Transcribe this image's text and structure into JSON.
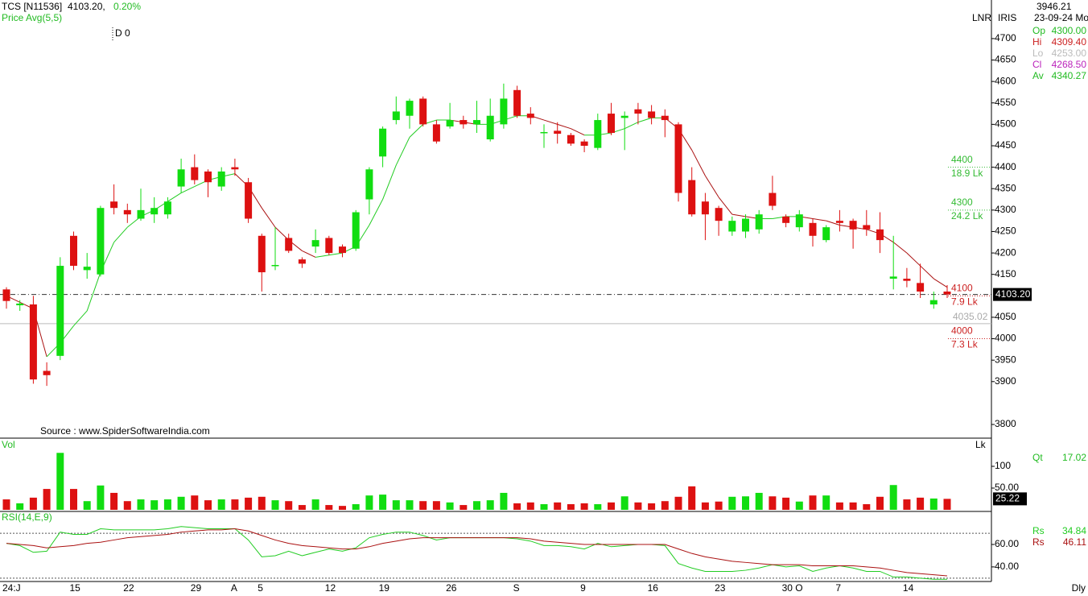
{
  "chart_data": [
    {
      "type": "candlestick",
      "title": "TCS [N11536]",
      "last_text": "4103.20,",
      "change": "0.20%",
      "indicator": "Price Avg(5,5)",
      "note": "D 0",
      "source": "Source : www.SpiderSoftwareIndia.com",
      "axis_names": [
        "LNR",
        "IRIS"
      ],
      "period": "Dly",
      "up_color": "#11dd11",
      "down_color": "#dd1111",
      "categories": [
        "24:J",
        null,
        null,
        null,
        null,
        "15",
        null,
        null,
        null,
        "22",
        null,
        null,
        null,
        null,
        "29",
        null,
        null,
        "A",
        null,
        "5",
        null,
        null,
        null,
        null,
        "12",
        null,
        null,
        null,
        "19",
        null,
        null,
        null,
        null,
        "26",
        null,
        null,
        null,
        null,
        "S",
        null,
        null,
        null,
        null,
        "9",
        null,
        null,
        null,
        null,
        "16",
        null,
        null,
        null,
        null,
        "23",
        null,
        null,
        null,
        null,
        "30 O",
        null,
        null,
        null,
        "7",
        null,
        null,
        null,
        null,
        "14",
        null,
        null,
        null
      ],
      "open": [
        4115,
        4078,
        4080,
        3925,
        3960,
        4240,
        4160,
        4150,
        4320,
        4300,
        4280,
        4290,
        4290,
        4355,
        4400,
        4390,
        4355,
        4400,
        4365,
        4240,
        4170,
        4235,
        4185,
        4215,
        4235,
        4215,
        4210,
        4325,
        4425,
        4510,
        4520,
        4560,
        4500,
        4495,
        4510,
        4500,
        4465,
        4500,
        4580,
        4525,
        4480,
        4485,
        4475,
        4460,
        4445,
        4525,
        4515,
        4535,
        4530,
        4520,
        4500,
        4370,
        4320,
        4305,
        4250,
        4250,
        4255,
        4340,
        4285,
        4260,
        4270,
        4230,
        4275,
        4275,
        4265,
        4255,
        4140,
        4140,
        4130,
        4080,
        4110
      ],
      "high": [
        4120,
        4090,
        4100,
        3945,
        4190,
        4250,
        4200,
        4310,
        4360,
        4315,
        4350,
        4330,
        4330,
        4420,
        4430,
        4395,
        4400,
        4420,
        4375,
        4245,
        4260,
        4245,
        4190,
        4255,
        4240,
        4220,
        4300,
        4400,
        4495,
        4565,
        4560,
        4565,
        4510,
        4550,
        4520,
        4555,
        4560,
        4595,
        4590,
        4540,
        4500,
        4505,
        4480,
        4465,
        4525,
        4550,
        4530,
        4550,
        4545,
        4535,
        4505,
        4400,
        4340,
        4310,
        4285,
        4290,
        4300,
        4380,
        4290,
        4300,
        4280,
        4265,
        4300,
        4280,
        4300,
        4295,
        4240,
        4165,
        4175,
        4110,
        4125
      ],
      "low": [
        4070,
        4065,
        3895,
        3890,
        3950,
        4160,
        4140,
        4145,
        4290,
        4270,
        4275,
        4270,
        4280,
        4340,
        4360,
        4330,
        4345,
        4380,
        4270,
        4110,
        4160,
        4200,
        4165,
        4200,
        4195,
        4190,
        4205,
        4290,
        4400,
        4500,
        4490,
        4495,
        4455,
        4490,
        4490,
        4480,
        4460,
        4490,
        4515,
        4500,
        4445,
        4455,
        4450,
        4435,
        4440,
        4475,
        4440,
        4500,
        4500,
        4470,
        4320,
        4285,
        4230,
        4240,
        4240,
        4235,
        4245,
        4300,
        4260,
        4250,
        4215,
        4225,
        4250,
        4210,
        4240,
        4200,
        4115,
        4120,
        4095,
        4070,
        4095
      ],
      "close": [
        4088,
        4082,
        3905,
        3915,
        4170,
        4170,
        4168,
        4305,
        4305,
        4290,
        4300,
        4305,
        4320,
        4395,
        4370,
        4365,
        4390,
        4395,
        4280,
        4155,
        4172,
        4205,
        4175,
        4230,
        4200,
        4200,
        4295,
        4395,
        4490,
        4530,
        4555,
        4500,
        4460,
        4510,
        4500,
        4510,
        4520,
        4560,
        4520,
        4515,
        4482,
        4478,
        4455,
        4450,
        4510,
        4480,
        4520,
        4525,
        4515,
        4510,
        4340,
        4290,
        4290,
        4275,
        4275,
        4280,
        4290,
        4310,
        4270,
        4290,
        4240,
        4260,
        4270,
        4255,
        4255,
        4230,
        4145,
        4135,
        4110,
        4090,
        4103.2
      ],
      "ma": [
        4100,
        4085,
        4070,
        3958,
        3990,
        4030,
        4065,
        4155,
        4225,
        4260,
        4285,
        4300,
        4320,
        4340,
        4355,
        4370,
        4378,
        4385,
        4355,
        4305,
        4260,
        4230,
        4205,
        4190,
        4195,
        4200,
        4215,
        4265,
        4325,
        4405,
        4470,
        4500,
        4510,
        4510,
        4505,
        4500,
        4500,
        4510,
        4520,
        4520,
        4510,
        4500,
        4490,
        4475,
        4475,
        4480,
        4490,
        4505,
        4515,
        4515,
        4490,
        4440,
        4380,
        4330,
        4290,
        4285,
        4280,
        4280,
        4285,
        4285,
        4280,
        4275,
        4265,
        4260,
        4255,
        4245,
        4225,
        4200,
        4170,
        4140,
        4120
      ],
      "ylim": [
        3770,
        4790
      ],
      "yticks": [
        3800,
        3900,
        3950,
        4000,
        4050,
        4150,
        4200,
        4250,
        4300,
        4350,
        4400,
        4450,
        4500,
        4550,
        4600,
        4650,
        4700
      ],
      "price_tag": {
        "value": 4103.2,
        "label": "4103.20"
      },
      "ref_line": {
        "value": 4035.02,
        "label": "4035.02"
      },
      "levels": [
        {
          "price": 4400,
          "qty": "18.9 Lk",
          "color": "#33bb33"
        },
        {
          "price": 4300,
          "qty": "24.2 Lk",
          "color": "#33bb33"
        },
        {
          "price": 4100,
          "qty": "7.9 Lk",
          "color": "#cc2222"
        },
        {
          "price": 4000,
          "qty": "7.3 Lk",
          "color": "#cc2222"
        }
      ],
      "info": {
        "cursor": "3946.21",
        "date": "23-09-24 Mo",
        "rows": [
          {
            "label": "Op",
            "value": "4300.00",
            "color": "#22bb22"
          },
          {
            "label": "Hi",
            "value": "4309.40",
            "color": "#cc2222"
          },
          {
            "label": "Lo",
            "value": "4253.00",
            "color": "#bbbbbb"
          },
          {
            "label": "Cl",
            "value": "4268.50",
            "color": "#bb22bb"
          },
          {
            "label": "Av",
            "value": "4340.27",
            "color": "#22bb22"
          }
        ]
      }
    },
    {
      "type": "bar",
      "title": "Vol",
      "unit": "Lk",
      "values": [
        24,
        15,
        28,
        48,
        131,
        48,
        20,
        56,
        39,
        20,
        24,
        22,
        24,
        30,
        33,
        22,
        24,
        24,
        28,
        30,
        22,
        20,
        11,
        24,
        11,
        9,
        13,
        33,
        35,
        22,
        22,
        20,
        20,
        17,
        11,
        20,
        22,
        39,
        15,
        17,
        13,
        17,
        13,
        15,
        13,
        17,
        31,
        17,
        15,
        20,
        30,
        54,
        17,
        19,
        30,
        31,
        39,
        31,
        28,
        19,
        33,
        33,
        17,
        17,
        13,
        30,
        57,
        24,
        28,
        26,
        25.22
      ],
      "ylim": [
        0,
        163
      ],
      "yticks": [
        {
          "value": 50,
          "label": "50.00"
        },
        100
      ],
      "qt_label": "Qt",
      "qt_value": "17.02",
      "last_tag": {
        "value": 25.22,
        "label": "25.22"
      }
    },
    {
      "type": "line",
      "title": "RSI(14,E,9)",
      "ylim": [
        27,
        88
      ],
      "yticks": [
        {
          "value": 40,
          "label": "40.00"
        },
        {
          "value": 60,
          "label": "60.00"
        }
      ],
      "levels": [
        70,
        30
      ],
      "series": [
        {
          "name": "Rs",
          "readout": "34.84",
          "color": "#22cc22",
          "values": [
            61,
            59,
            53,
            54,
            71,
            69,
            69,
            74,
            73,
            73,
            73,
            73,
            74,
            76,
            75,
            74,
            74,
            74,
            64,
            49,
            50,
            54,
            50,
            53,
            56,
            54,
            57,
            66,
            69,
            71,
            71,
            68,
            64,
            66,
            66,
            66,
            66,
            66,
            65,
            63,
            59,
            59,
            58,
            56,
            61,
            58,
            59,
            60,
            60,
            59,
            43,
            39,
            36,
            36,
            36,
            37,
            39,
            42,
            40,
            41,
            36,
            39,
            41,
            39,
            36,
            36,
            31,
            31,
            30,
            29,
            29
          ]
        },
        {
          "name": "Rs",
          "readout": "46.11",
          "color": "#aa1111",
          "values": [
            61,
            60,
            59,
            57,
            58,
            59,
            61,
            62,
            64,
            66,
            67,
            68,
            69,
            71,
            72,
            73,
            73,
            74,
            72,
            68,
            64,
            61,
            59,
            58,
            57,
            56,
            56,
            58,
            61,
            63,
            65,
            66,
            66,
            66,
            66,
            66,
            66,
            66,
            66,
            65,
            63,
            62,
            61,
            60,
            60,
            60,
            60,
            60,
            60,
            60,
            56,
            52,
            49,
            47,
            45,
            44,
            43,
            42,
            42,
            42,
            41,
            41,
            41,
            41,
            40,
            39,
            37,
            35,
            34,
            33,
            32
          ]
        }
      ]
    }
  ]
}
